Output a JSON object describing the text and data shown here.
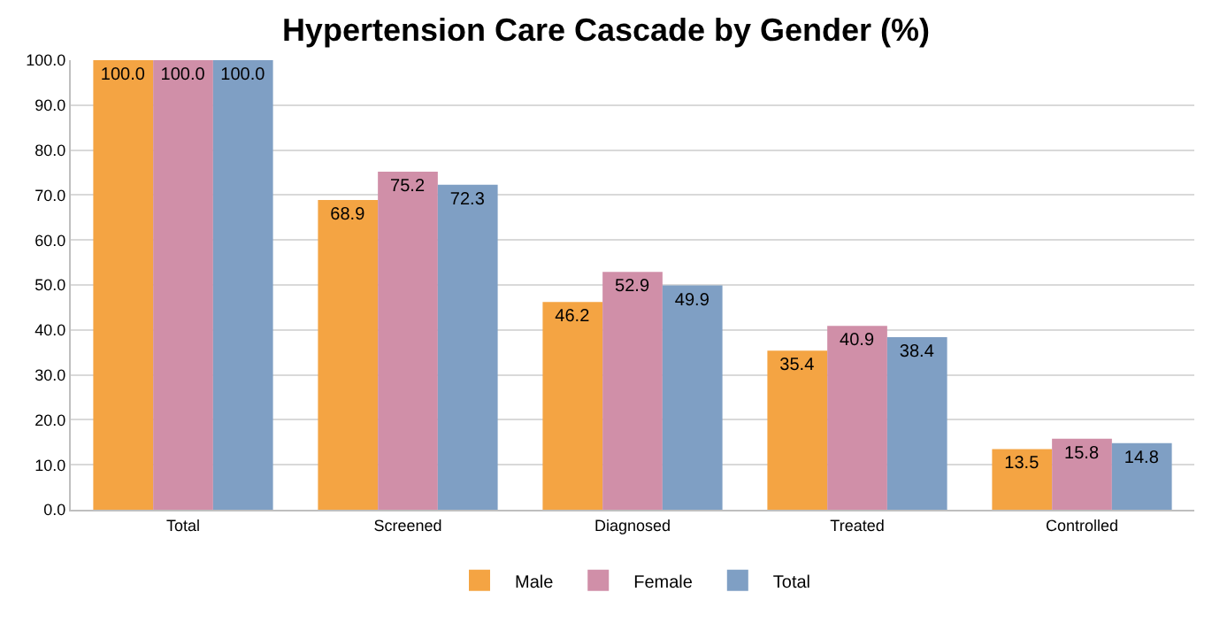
{
  "chart_data": {
    "type": "bar",
    "title": "Hypertension Care Cascade by Gender (%)",
    "categories": [
      "Total",
      "Screened",
      "Diagnosed",
      "Treated",
      "Controlled"
    ],
    "series": [
      {
        "name": "Male",
        "color": "#f4a443",
        "values": [
          100.0,
          68.9,
          46.2,
          35.4,
          13.5
        ],
        "value_labels": [
          "100.0",
          "68.9",
          "46.2",
          "35.4",
          "13.5"
        ]
      },
      {
        "name": "Female",
        "color": "#d08fa8",
        "values": [
          100.0,
          75.2,
          52.9,
          40.9,
          15.8
        ],
        "value_labels": [
          "100.0",
          "75.2",
          "52.9",
          "40.9",
          "15.8"
        ]
      },
      {
        "name": "Total",
        "color": "#7f9fc4",
        "values": [
          100.0,
          72.3,
          49.9,
          38.4,
          14.8
        ],
        "value_labels": [
          "100.0",
          "72.3",
          "49.9",
          "38.4",
          "14.8"
        ]
      }
    ],
    "ylim": [
      0,
      100
    ],
    "yticks": [
      {
        "value": 0,
        "label": "0.0"
      },
      {
        "value": 10,
        "label": "10.0"
      },
      {
        "value": 20,
        "label": "20.0"
      },
      {
        "value": 30,
        "label": "30.0"
      },
      {
        "value": 40,
        "label": "40.0"
      },
      {
        "value": 50,
        "label": "50.0"
      },
      {
        "value": 60,
        "label": "60.0"
      },
      {
        "value": 70,
        "label": "70.0"
      },
      {
        "value": 80,
        "label": "80.0"
      },
      {
        "value": 90,
        "label": "90.0"
      },
      {
        "value": 100,
        "label": "100.0"
      }
    ],
    "grid": "y",
    "legend": "bottom"
  }
}
